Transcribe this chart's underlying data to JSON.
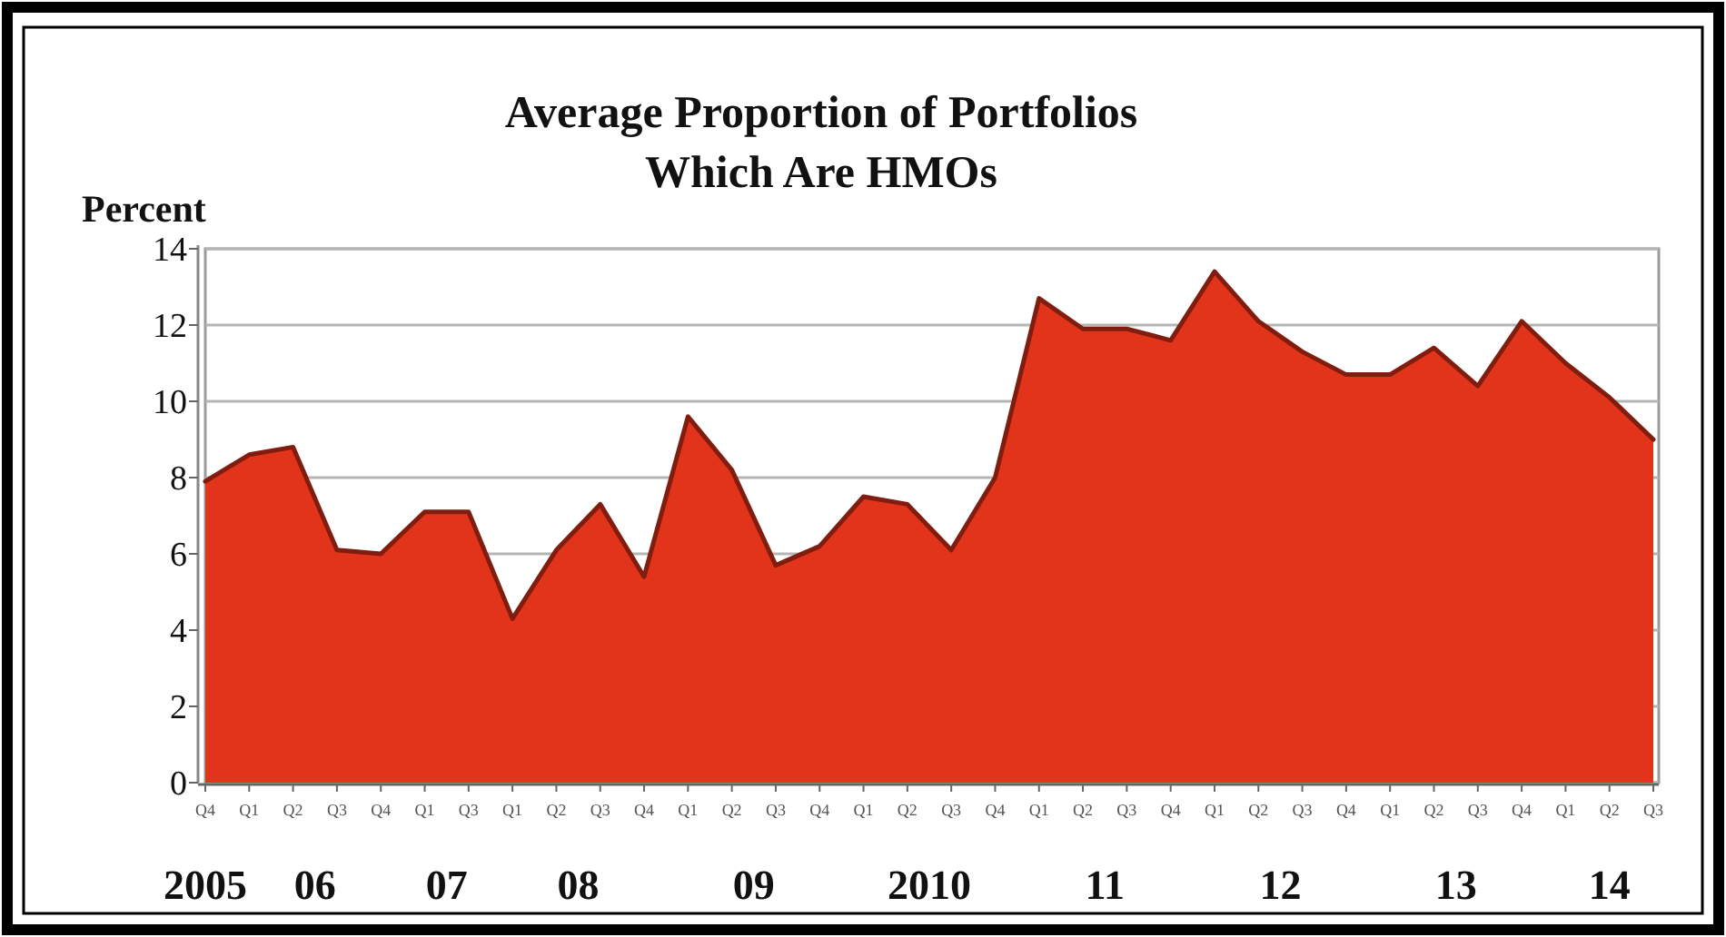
{
  "chart_data": {
    "type": "area",
    "title": "Average Proportion of Portfolios\nWhich Are HMOs",
    "ylabel": "Percent",
    "categories": [
      "Q4",
      "Q1",
      "Q2",
      "Q3",
      "Q4",
      "Q1",
      "Q3",
      "Q1",
      "Q2",
      "Q3",
      "Q4",
      "Q1",
      "Q2",
      "Q3",
      "Q4",
      "Q1",
      "Q2",
      "Q3",
      "Q4",
      "Q1",
      "Q2",
      "Q3",
      "Q4",
      "Q1",
      "Q2",
      "Q3",
      "Q4",
      "Q1",
      "Q2",
      "Q3",
      "Q4",
      "Q1",
      "Q2",
      "Q3"
    ],
    "values": [
      7.9,
      8.6,
      8.8,
      6.1,
      6.0,
      7.1,
      7.1,
      4.3,
      6.1,
      7.3,
      5.4,
      9.6,
      8.2,
      5.7,
      6.2,
      7.5,
      7.3,
      6.1,
      8.0,
      12.7,
      11.9,
      11.9,
      11.6,
      13.4,
      12.1,
      11.3,
      10.7,
      10.7,
      11.4,
      10.4,
      12.1,
      11.0,
      10.1,
      9.0
    ],
    "color": "#e2341a",
    "ylim": [
      0,
      14
    ],
    "yticks": [
      0,
      2,
      4,
      6,
      8,
      10,
      12,
      14
    ],
    "grid": "y",
    "annotations": [
      "2005",
      "06",
      "07",
      "08",
      "09",
      "2010",
      "11",
      "12",
      "13",
      "14"
    ]
  }
}
